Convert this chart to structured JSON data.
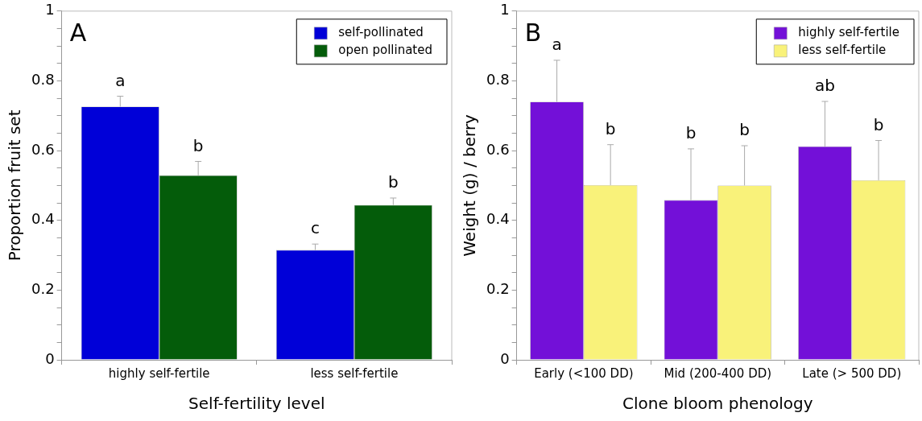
{
  "chart_data": [
    {
      "type": "bar",
      "title": "A",
      "xlabel": "Self-fertility level",
      "ylabel": "Proportion fruit set",
      "categories": [
        "highly self-fertile",
        "less self-fertile"
      ],
      "series": [
        {
          "name": "self-pollinated",
          "color": "#0000d8",
          "values": [
            0.726,
            0.315
          ],
          "errors": [
            [
              0.726,
              0.756
            ],
            [
              0.315,
              0.332
            ]
          ]
        },
        {
          "name": "open pollinated",
          "color": "#045c0a",
          "values": [
            0.529,
            0.444
          ],
          "errors": [
            [
              0.529,
              0.569
            ],
            [
              0.444,
              0.464
            ]
          ]
        }
      ],
      "ylim": [
        0,
        1
      ],
      "yticks": [
        0,
        {
          "value": 0.05,
          "label": null
        },
        {
          "value": 0.1,
          "label": null
        },
        {
          "value": 0.15,
          "label": null
        },
        0.2,
        {
          "value": 0.25,
          "label": null
        },
        {
          "value": 0.3,
          "label": null
        },
        {
          "value": 0.35,
          "label": null
        },
        0.4,
        {
          "value": 0.45,
          "label": null
        },
        {
          "value": 0.5,
          "label": null
        },
        {
          "value": 0.55,
          "label": null
        },
        0.6,
        {
          "value": 0.65,
          "label": null
        },
        {
          "value": 0.7,
          "label": null
        },
        {
          "value": 0.75,
          "label": null
        },
        0.8,
        {
          "value": 0.85,
          "label": null
        },
        {
          "value": 0.9,
          "label": null
        },
        {
          "value": 0.95,
          "label": null
        },
        1
      ],
      "annotations": [
        "a",
        "b",
        "c",
        "b"
      ],
      "legend": "top right",
      "grid": false
    },
    {
      "type": "bar",
      "title": "B",
      "xlabel": "Clone bloom phenology",
      "ylabel": "Weight (g) / berry",
      "categories": [
        "Early (<100 DD)",
        "Mid (200-400 DD)",
        "Late (> 500 DD)"
      ],
      "series": [
        {
          "name": "highly self-fertile",
          "color": "#7310d8",
          "values": [
            0.74,
            0.458,
            0.612
          ],
          "errors": [
            [
              0.74,
              0.859
            ],
            [
              0.458,
              0.605
            ],
            [
              0.612,
              0.741
            ]
          ]
        },
        {
          "name": "less self-fertile",
          "color": "#f9f27a",
          "values": [
            0.501,
            0.5,
            0.515
          ],
          "errors": [
            [
              0.501,
              0.617
            ],
            [
              0.5,
              0.614
            ],
            [
              0.515,
              0.629
            ]
          ]
        }
      ],
      "ylim": [
        0,
        1
      ],
      "yticks": [
        0,
        {
          "value": 0.05,
          "label": null
        },
        {
          "value": 0.1,
          "label": null
        },
        {
          "value": 0.15,
          "label": null
        },
        0.2,
        {
          "value": 0.25,
          "label": null
        },
        {
          "value": 0.3,
          "label": null
        },
        {
          "value": 0.35,
          "label": null
        },
        0.4,
        {
          "value": 0.45,
          "label": null
        },
        {
          "value": 0.5,
          "label": null
        },
        {
          "value": 0.55,
          "label": null
        },
        0.6,
        {
          "value": 0.65,
          "label": null
        },
        {
          "value": 0.7,
          "label": null
        },
        {
          "value": 0.75,
          "label": null
        },
        0.8,
        {
          "value": 0.85,
          "label": null
        },
        {
          "value": 0.9,
          "label": null
        },
        {
          "value": 0.95,
          "label": null
        },
        1
      ],
      "annotations": [
        "a",
        "b",
        "b",
        "b",
        "ab",
        "b"
      ],
      "legend": "top right",
      "grid": false
    }
  ]
}
